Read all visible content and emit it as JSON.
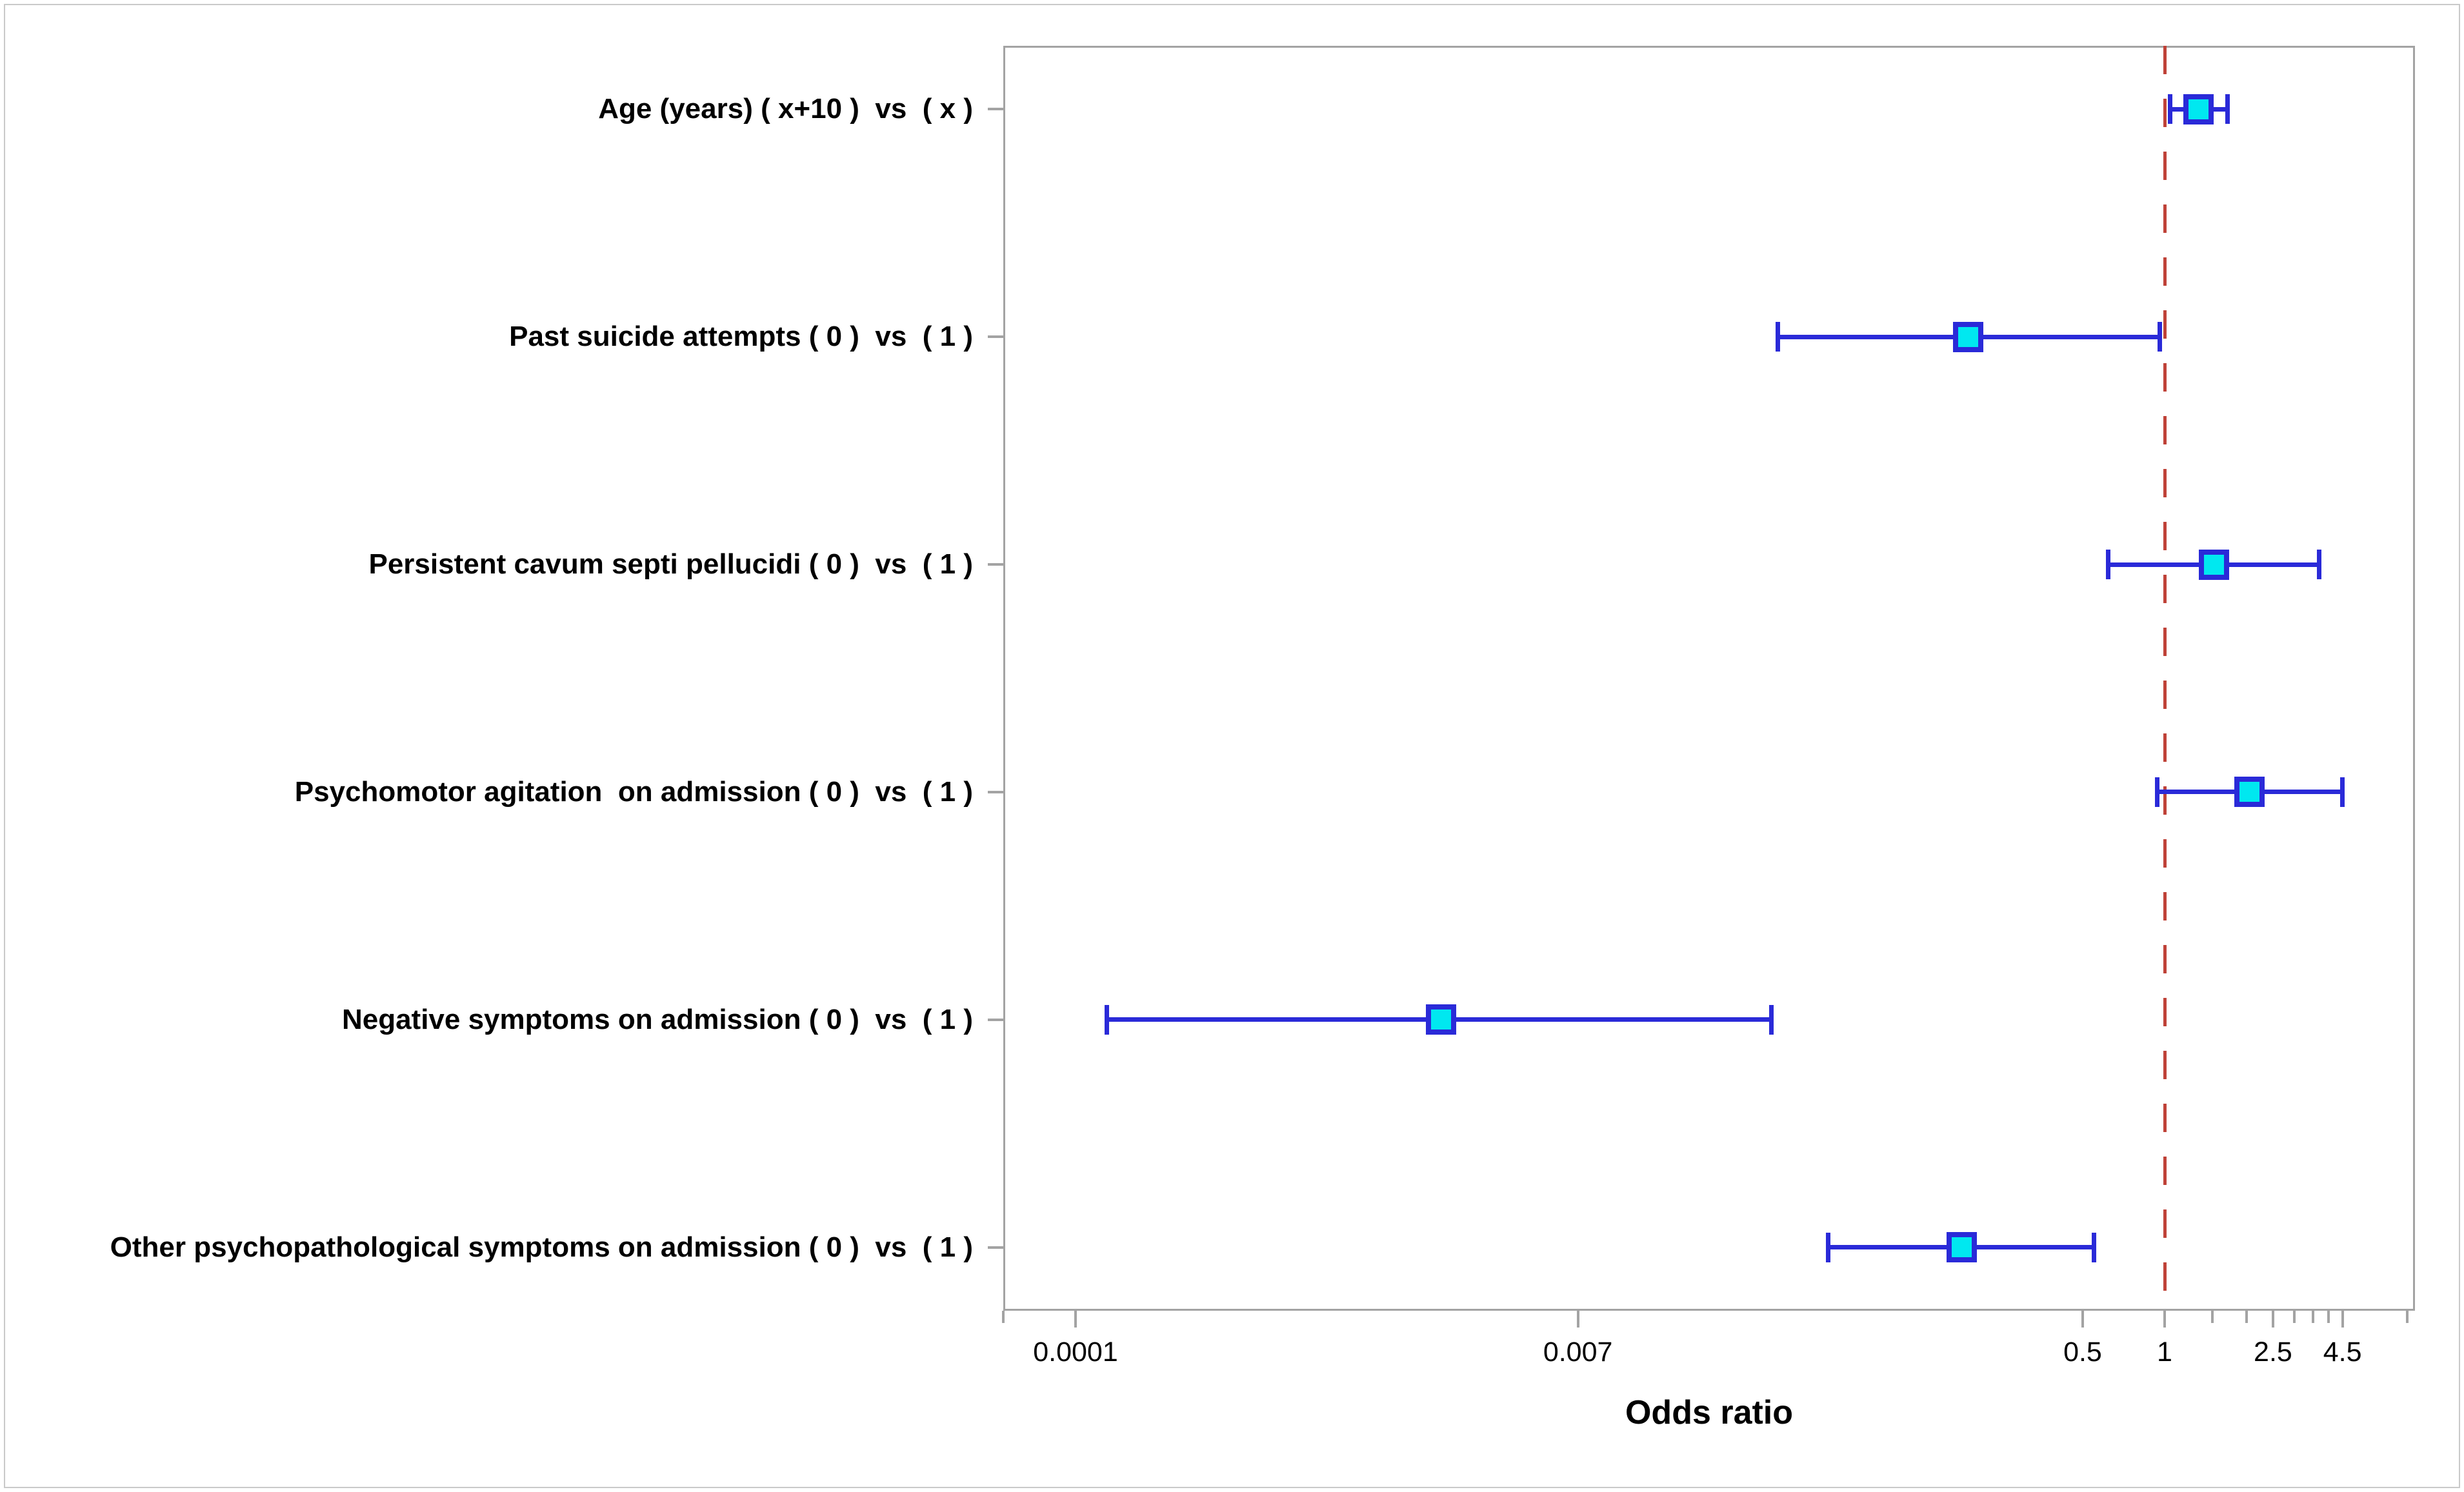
{
  "chart_data": {
    "type": "forest",
    "title": "",
    "xlabel": "Odds ratio",
    "x_scale": "log10",
    "x_axis": {
      "range": [
        5.4e-05,
        8.3
      ],
      "grid": false,
      "labeled_ticks": [
        {
          "value": 0.0001,
          "label": "0.0001"
        },
        {
          "value": 0.007,
          "label": "0.007"
        },
        {
          "value": 0.5,
          "label": "0.5"
        },
        {
          "value": 1,
          "label": "1"
        },
        {
          "value": 2.5,
          "label": "2.5"
        },
        {
          "value": 4.5,
          "label": "4.5"
        }
      ],
      "minor_ticks": [
        5.43e-05,
        1.5,
        2,
        3,
        3.5,
        4,
        7.8
      ]
    },
    "reference_line": {
      "value": 1,
      "style": "dashed",
      "color": "#bf4238"
    },
    "marker_style": {
      "shape": "square",
      "fill": "#00e8f0",
      "stroke": "#2a2ad8"
    },
    "ci_color": "#2a2ad8",
    "rows": [
      {
        "label": "Age (years) ( x+10 )  vs  ( x )",
        "estimate": 1.33,
        "ci_low": 1.05,
        "ci_high": 1.7
      },
      {
        "label": "Past suicide attempts ( 0 )  vs  ( 1 )",
        "estimate": 0.19,
        "ci_low": 0.038,
        "ci_high": 0.96
      },
      {
        "label": "Persistent cavum septi pellucidi ( 0 )  vs  ( 1 )",
        "estimate": 1.52,
        "ci_low": 0.62,
        "ci_high": 3.7
      },
      {
        "label": "Psychomotor agitation  on admission ( 0 )  vs  ( 1 )",
        "estimate": 2.05,
        "ci_low": 0.94,
        "ci_high": 4.5
      },
      {
        "label": "Negative symptoms on admission ( 0 )  vs  ( 1 )",
        "estimate": 0.0022,
        "ci_low": 0.00013,
        "ci_high": 0.036
      },
      {
        "label": "Other psychopathological symptoms on admission ( 0 )  vs  ( 1 )",
        "estimate": 0.18,
        "ci_low": 0.058,
        "ci_high": 0.55
      }
    ]
  }
}
